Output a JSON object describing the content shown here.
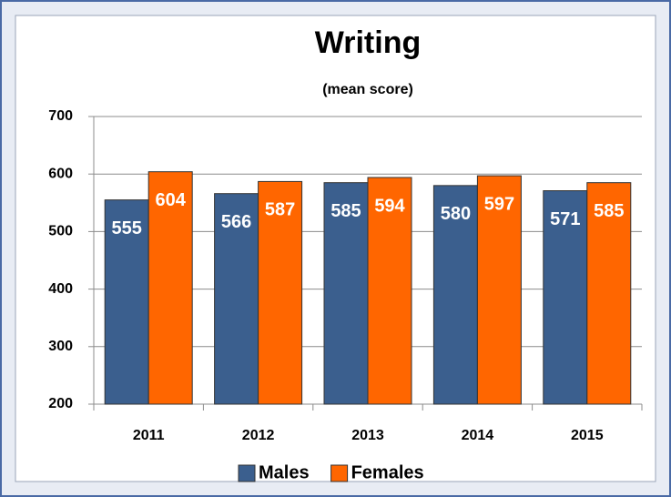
{
  "chart_data": {
    "type": "bar",
    "title": "Writing",
    "subtitle": "(mean score)",
    "categories": [
      "2011",
      "2012",
      "2013",
      "2014",
      "2015"
    ],
    "series": [
      {
        "name": "Males",
        "color": "#3b5f8e",
        "values": [
          555,
          566,
          585,
          580,
          571
        ]
      },
      {
        "name": "Females",
        "color": "#ff6600",
        "values": [
          604,
          587,
          594,
          597,
          585
        ]
      }
    ],
    "ylim": [
      200,
      700
    ],
    "yticks": [
      200,
      300,
      400,
      500,
      600,
      700
    ],
    "grid": true,
    "legend": "bottom"
  }
}
